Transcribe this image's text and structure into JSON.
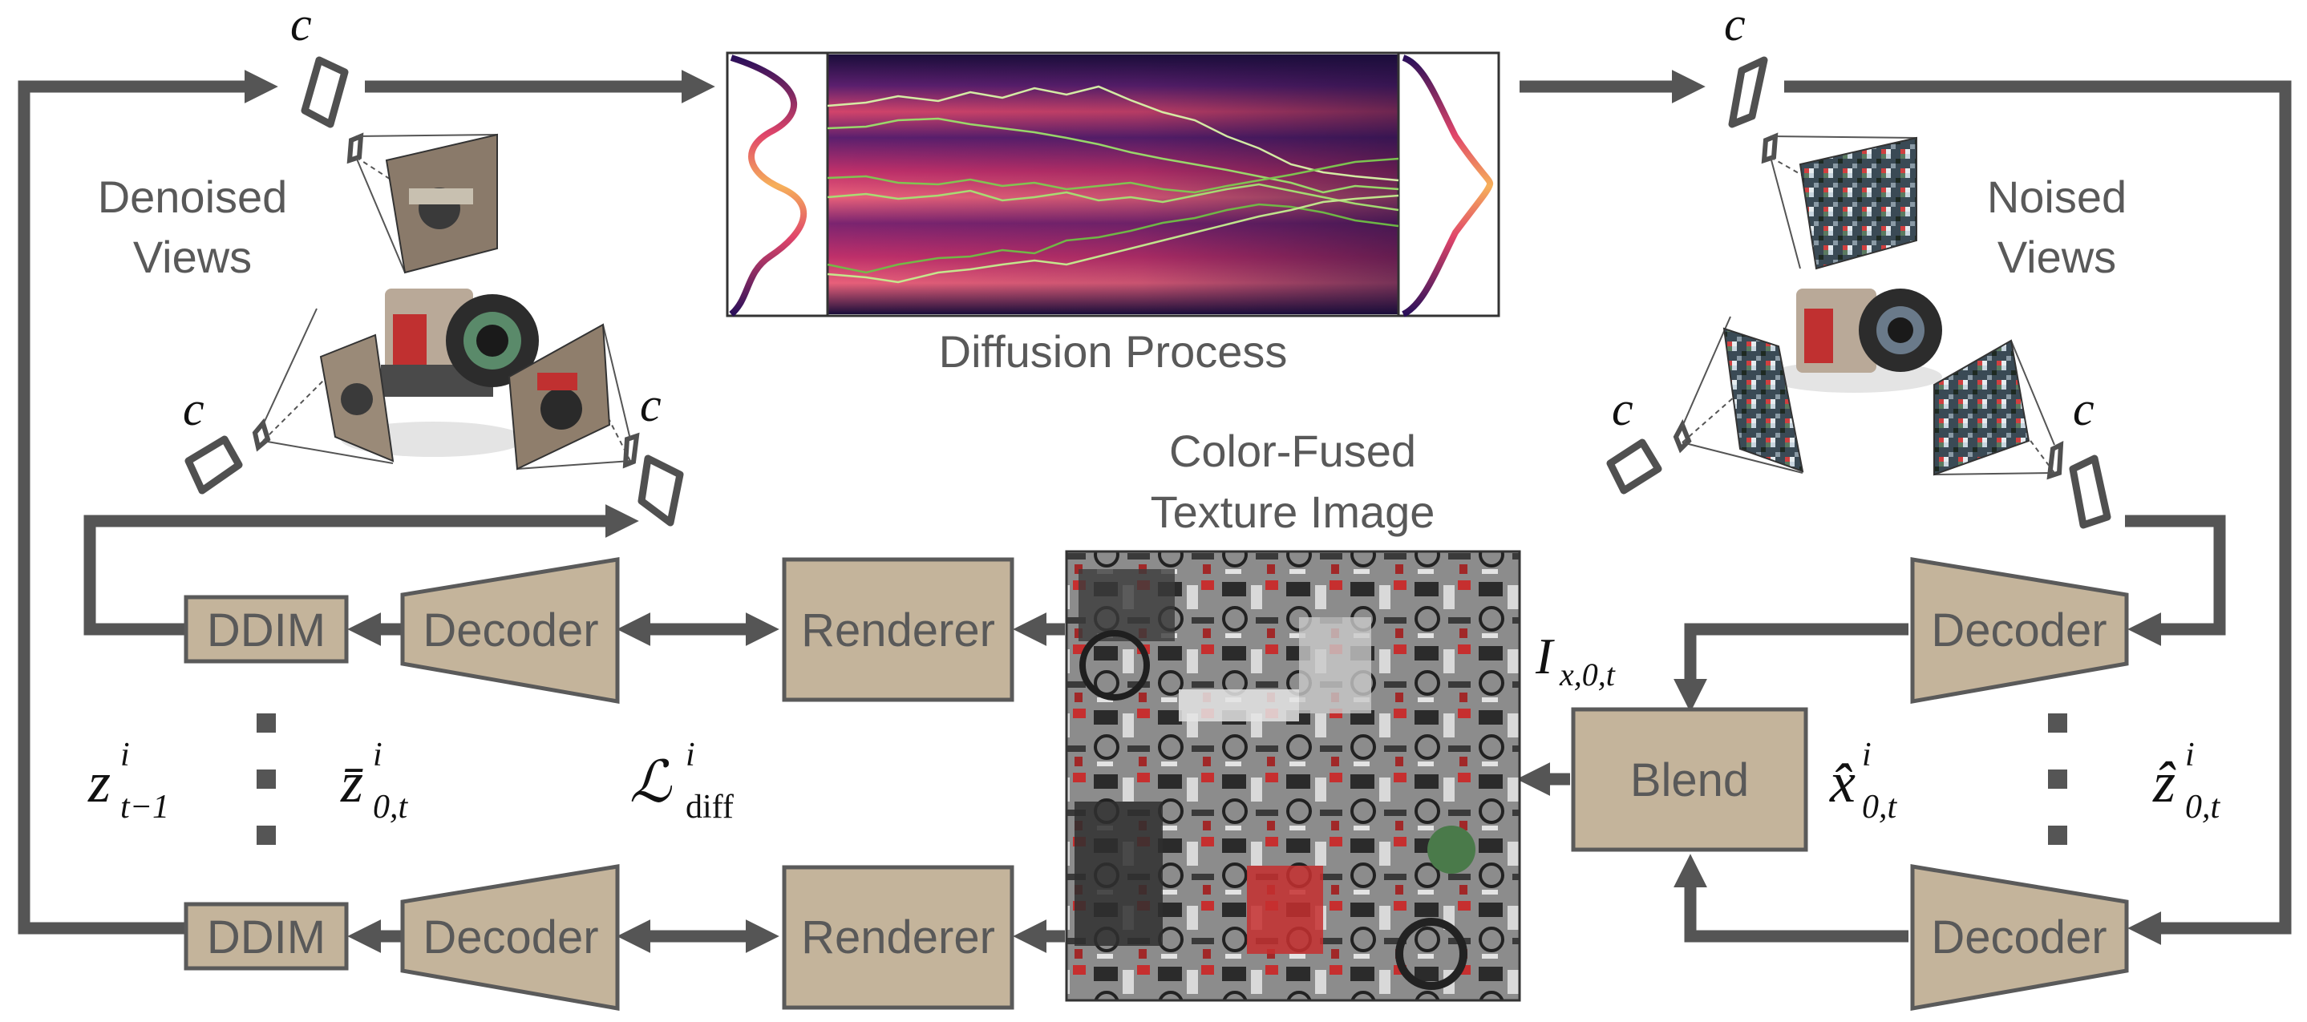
{
  "labels": {
    "denoised_views_line1": "Denoised",
    "denoised_views_line2": "Views",
    "noised_views_line1": "Noised",
    "noised_views_line2": "Views",
    "diffusion_process": "Diffusion Process",
    "texture_line1": "Color-Fused",
    "texture_line2": "Texture Image"
  },
  "boxes": {
    "ddim_top": "DDIM",
    "ddim_bottom": "DDIM",
    "decoder_left_top": "Decoder",
    "decoder_left_bottom": "Decoder",
    "renderer_top": "Renderer",
    "renderer_bottom": "Renderer",
    "blend": "Blend",
    "decoder_right_top": "Decoder",
    "decoder_right_bottom": "Decoder"
  },
  "math": {
    "camera": "c",
    "z_prev_base": "z",
    "z_prev_sup": "i",
    "z_prev_sub": "t−1",
    "zbar_base": "z̄",
    "zbar_sup": "i",
    "zbar_sub": "0,t",
    "loss_base": "ℒ",
    "loss_sup": "i",
    "loss_sub": "diff",
    "image_base": "I",
    "image_sub": "x,0,t",
    "xhat_base": "x̂",
    "xhat_sup": "i",
    "xhat_sub": "0,t",
    "zhat_base": "ẑ",
    "zhat_sup": "i",
    "zhat_sub": "0,t"
  },
  "colors": {
    "box_fill": "#c4b49b",
    "arrow": "#555555",
    "heatmap_dark": "#1a0d3a",
    "heatmap_mid": "#c0306a",
    "heatmap_hot": "#f3a25a",
    "paths": "#8fd14f"
  }
}
